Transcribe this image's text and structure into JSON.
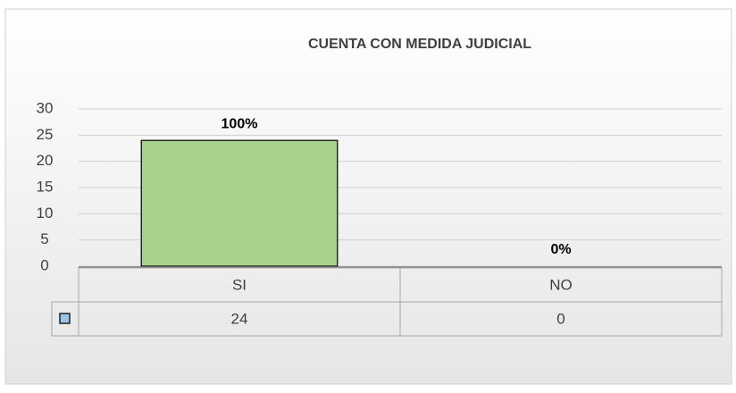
{
  "chart_data": {
    "type": "bar",
    "title": "CUENTA CON MEDIDA JUDICIAL",
    "categories": [
      "SI",
      "NO"
    ],
    "values": [
      24,
      0
    ],
    "data_labels": [
      "100%",
      "0%"
    ],
    "color": "#a9d18e",
    "key_color": "#9dc3e6",
    "ylim": [
      0,
      30
    ],
    "yticks": [
      0,
      5,
      10,
      15,
      20,
      25,
      30
    ],
    "grid": true,
    "data_table": true
  }
}
